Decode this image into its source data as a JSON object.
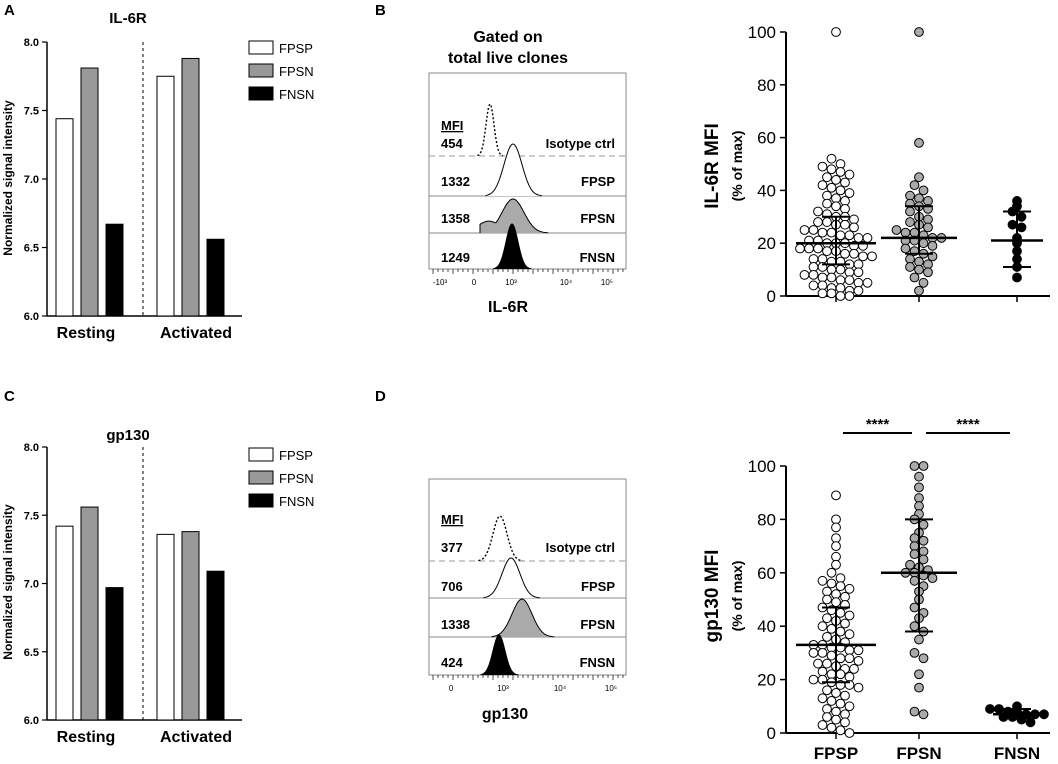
{
  "panels": {
    "A": {
      "letter": "A",
      "chart_data": {
        "type": "bar",
        "title": "IL-6R",
        "ylabel": "Normalized signal intensity",
        "ylim": [
          6.0,
          8.0
        ],
        "yticks": [
          "6.0",
          "6.5",
          "7.0",
          "7.5",
          "8.0"
        ],
        "yticks_values": [
          6.0,
          6.5,
          7.0,
          7.5,
          8.0
        ],
        "categories": [
          "Resting",
          "Activated"
        ],
        "legend_position": "top-right",
        "series": [
          {
            "name": "FPSP",
            "color": "#ffffff",
            "values": [
              7.44,
              7.75
            ]
          },
          {
            "name": "FPSN",
            "color": "#999999",
            "values": [
              7.81,
              7.88
            ]
          },
          {
            "name": "FNSN",
            "color": "#000000",
            "values": [
              6.67,
              6.56
            ]
          }
        ]
      }
    },
    "C": {
      "letter": "C",
      "chart_data": {
        "type": "bar",
        "title": "gp130",
        "ylabel": "Normalized signal intensity",
        "ylim": [
          6.0,
          8.0
        ],
        "yticks": [
          "6.0",
          "6.5",
          "7.0",
          "7.5",
          "8.0"
        ],
        "yticks_values": [
          6.0,
          6.5,
          7.0,
          7.5,
          8.0
        ],
        "categories": [
          "Resting",
          "Activated"
        ],
        "legend_position": "top-right",
        "series": [
          {
            "name": "FPSP",
            "color": "#ffffff",
            "values": [
              7.42,
              7.36
            ]
          },
          {
            "name": "FPSN",
            "color": "#999999",
            "values": [
              7.56,
              7.38
            ]
          },
          {
            "name": "FNSN",
            "color": "#000000",
            "values": [
              6.97,
              7.09
            ]
          }
        ]
      }
    },
    "B_hist": {
      "letter": "B",
      "title_line1": "Gated on",
      "title_line2": "total live clones",
      "mfi_header": "MFI",
      "xlabel": "IL-6R",
      "x_ticks": [
        "-10³",
        "0",
        "10³",
        "10⁴",
        "10⁵"
      ],
      "rows": [
        {
          "mfi": "454",
          "label": "Isotype ctrl",
          "fill": "none"
        },
        {
          "mfi": "1332",
          "label": "FPSP",
          "fill": "white"
        },
        {
          "mfi": "1358",
          "label": "FPSN",
          "fill": "#aaaaaa"
        },
        {
          "mfi": "1249",
          "label": "FNSN",
          "fill": "#000000"
        }
      ]
    },
    "D_hist": {
      "letter": "D",
      "mfi_header": "MFI",
      "xlabel": "gp130",
      "x_ticks": [
        "0",
        "10³",
        "10⁴",
        "10⁵"
      ],
      "rows": [
        {
          "mfi": "377",
          "label": "Isotype ctrl",
          "fill": "none"
        },
        {
          "mfi": "706",
          "label": "FPSP",
          "fill": "white"
        },
        {
          "mfi": "1338",
          "label": "FPSN",
          "fill": "#aaaaaa"
        },
        {
          "mfi": "424",
          "label": "FNSN",
          "fill": "#000000"
        }
      ]
    },
    "B_scatter": {
      "chart_data": {
        "type": "scatter",
        "ylabel": "IL-6R MFI",
        "ylabel_sub": "(% of max)",
        "ylim": [
          0,
          100
        ],
        "yticks": [
          "0",
          "20",
          "40",
          "60",
          "80",
          "100"
        ],
        "yticks_values": [
          0,
          20,
          40,
          60,
          80,
          100
        ],
        "categories": [
          "FPSP",
          "FPSN",
          "FNSN"
        ],
        "show_category_labels": false,
        "groups": [
          {
            "name": "FPSP",
            "fill": "#ffffff",
            "median": 20,
            "q1": 12,
            "q3": 30,
            "values": [
              100,
              52,
              50,
              49,
              48,
              47,
              46,
              45,
              44,
              43,
              42,
              41,
              40,
              39,
              38,
              37,
              36,
              35,
              34,
              33,
              32,
              31,
              30,
              30,
              29,
              28,
              28,
              27,
              27,
              26,
              25,
              25,
              24,
              24,
              23,
              23,
              22,
              22,
              21,
              21,
              20,
              20,
              20,
              19,
              19,
              18,
              18,
              18,
              17,
              17,
              16,
              16,
              15,
              15,
              14,
              14,
              13,
              13,
              12,
              12,
              11,
              11,
              10,
              10,
              9,
              9,
              8,
              8,
              7,
              7,
              6,
              6,
              5,
              5,
              4,
              4,
              3,
              3,
              2,
              2,
              1,
              1,
              0,
              0
            ]
          },
          {
            "name": "FPSN",
            "fill": "#aaaaaa",
            "median": 22,
            "q1": 16,
            "q3": 34,
            "values": [
              100,
              58,
              45,
              42,
              40,
              38,
              37,
              36,
              35,
              34,
              33,
              32,
              30,
              29,
              28,
              27,
              26,
              25,
              24,
              24,
              23,
              22,
              22,
              21,
              21,
              20,
              19,
              18,
              17,
              16,
              15,
              14,
              13,
              12,
              11,
              10,
              9,
              7,
              5,
              2
            ]
          },
          {
            "name": "FNSN",
            "fill": "#000000",
            "median": 21,
            "q1": 11,
            "q3": 32,
            "values": [
              36,
              34,
              32,
              30,
              27,
              26,
              22,
              20,
              17,
              14,
              11,
              7
            ]
          }
        ]
      }
    },
    "D_scatter": {
      "chart_data": {
        "type": "scatter",
        "ylabel": "gp130 MFI",
        "ylabel_sub": "(% of max)",
        "ylim": [
          0,
          100
        ],
        "yticks": [
          "0",
          "20",
          "40",
          "60",
          "80",
          "100"
        ],
        "yticks_values": [
          0,
          20,
          40,
          60,
          80,
          100
        ],
        "categories": [
          "FPSP",
          "FPSN",
          "FNSN"
        ],
        "show_category_labels": true,
        "significance": [
          {
            "from": "FPSP",
            "to": "FPSN",
            "label": "****"
          },
          {
            "from": "FPSN",
            "to": "FNSN",
            "label": "****"
          }
        ],
        "groups": [
          {
            "name": "FPSP",
            "fill": "#ffffff",
            "median": 33,
            "q1": 19,
            "q3": 47,
            "values": [
              89,
              80,
              77,
              73,
              70,
              66,
              63,
              60,
              58,
              57,
              56,
              55,
              54,
              53,
              52,
              51,
              50,
              49,
              48,
              47,
              46,
              45,
              44,
              43,
              42,
              41,
              40,
              39,
              38,
              37,
              36,
              35,
              34,
              33,
              33,
              32,
              32,
              31,
              31,
              30,
              30,
              29,
              28,
              28,
              27,
              26,
              26,
              25,
              24,
              24,
              23,
              22,
              22,
              21,
              20,
              20,
              19,
              18,
              18,
              17,
              16,
              15,
              14,
              13,
              12,
              11,
              10,
              9,
              8,
              7,
              6,
              5,
              4,
              3,
              2,
              1,
              0
            ]
          },
          {
            "name": "FPSN",
            "fill": "#aaaaaa",
            "median": 60,
            "q1": 38,
            "q3": 80,
            "values": [
              100,
              100,
              96,
              92,
              88,
              85,
              82,
              80,
              78,
              75,
              73,
              72,
              70,
              68,
              67,
              65,
              63,
              62,
              61,
              60,
              60,
              59,
              58,
              57,
              55,
              53,
              50,
              47,
              45,
              43,
              40,
              38,
              35,
              30,
              28,
              22,
              17,
              8,
              7
            ]
          },
          {
            "name": "FNSN",
            "fill": "#000000",
            "median": 7,
            "q1": 6,
            "q3": 9,
            "values": [
              10,
              9,
              9,
              8,
              8,
              7,
              7,
              7,
              6,
              6,
              5,
              4
            ]
          }
        ]
      }
    }
  }
}
